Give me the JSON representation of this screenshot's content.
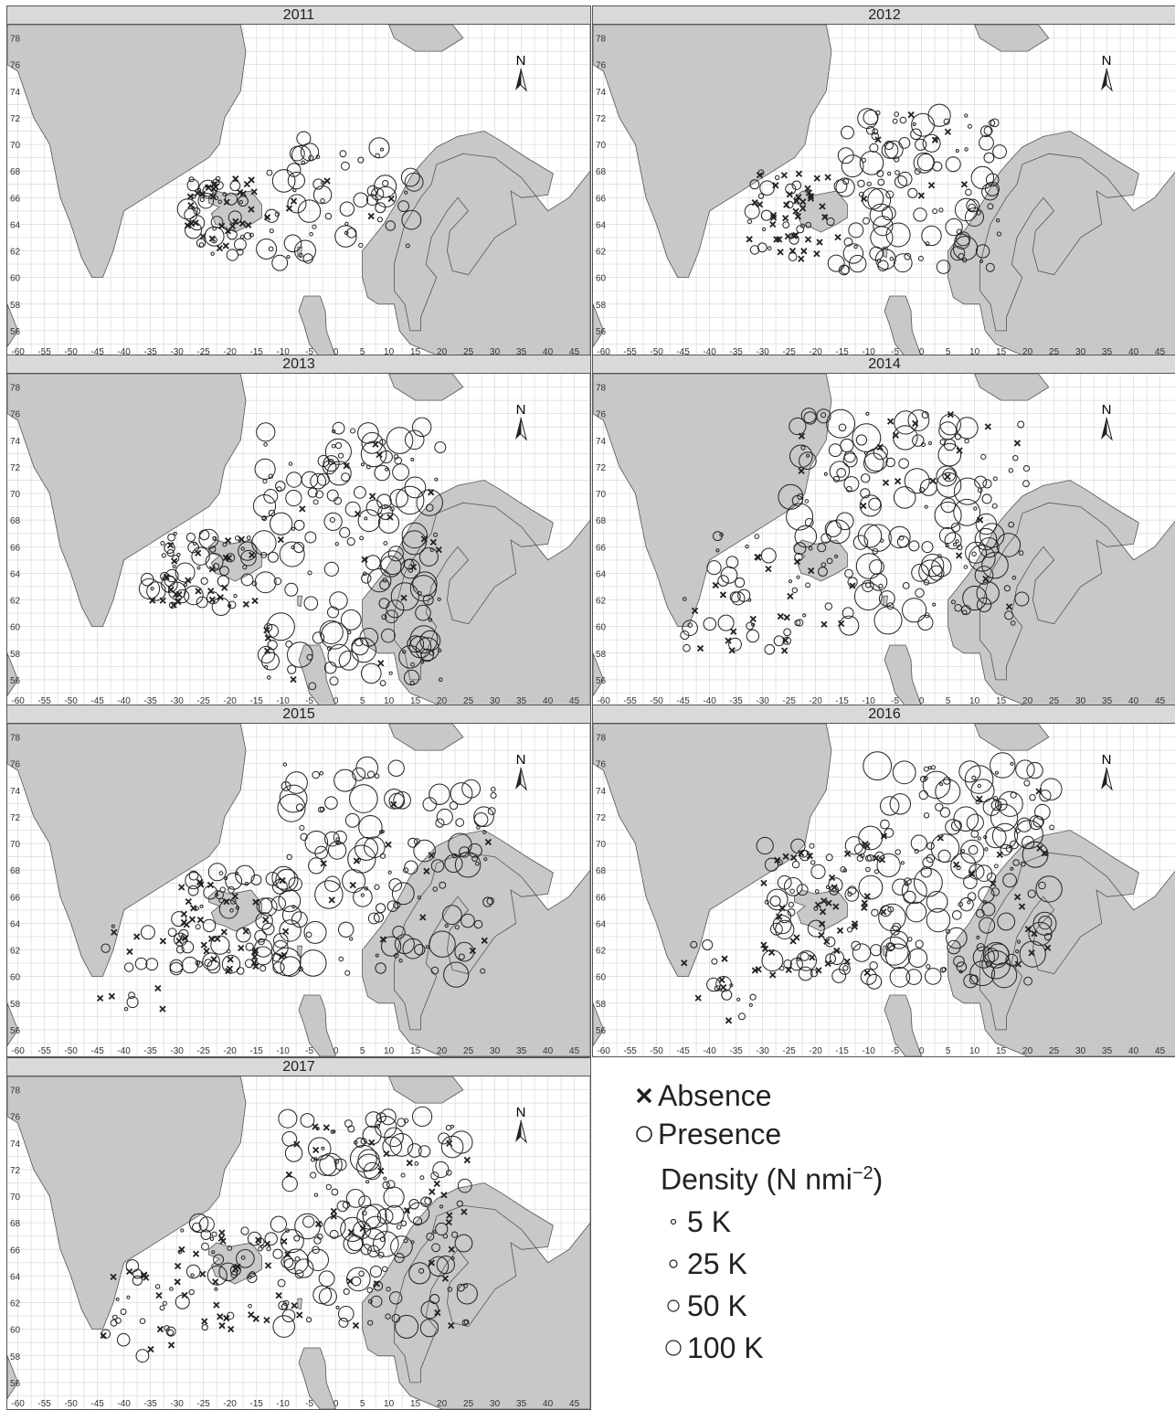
{
  "panels": [
    {
      "year": "2011"
    },
    {
      "year": "2012"
    },
    {
      "year": "2013"
    },
    {
      "year": "2014"
    },
    {
      "year": "2015"
    },
    {
      "year": "2016"
    },
    {
      "year": "2017"
    }
  ],
  "north_label": "N",
  "lat_labels": [
    "78",
    "76",
    "74",
    "72",
    "70",
    "68",
    "66",
    "64",
    "62",
    "60",
    "58",
    "56"
  ],
  "lon_labels": [
    "-60",
    "-55",
    "-50",
    "-45",
    "-40",
    "-35",
    "-30",
    "-25",
    "-20",
    "-15",
    "-10",
    "-5",
    "0",
    "5",
    "10",
    "15",
    "20",
    "25",
    "30",
    "35",
    "40",
    "45"
  ],
  "legend": {
    "absence": "Absence",
    "presence": "Presence",
    "density_title": "Density (N nmi",
    "density_exp": "−2",
    "density_close": ")",
    "sizes": [
      {
        "label": "5 K"
      },
      {
        "label": "25 K"
      },
      {
        "label": "50 K"
      },
      {
        "label": "100 K"
      }
    ]
  },
  "colors": {
    "land": "#c8c8c8",
    "grid": "#d8d8d8",
    "symbol": "#222222"
  }
}
